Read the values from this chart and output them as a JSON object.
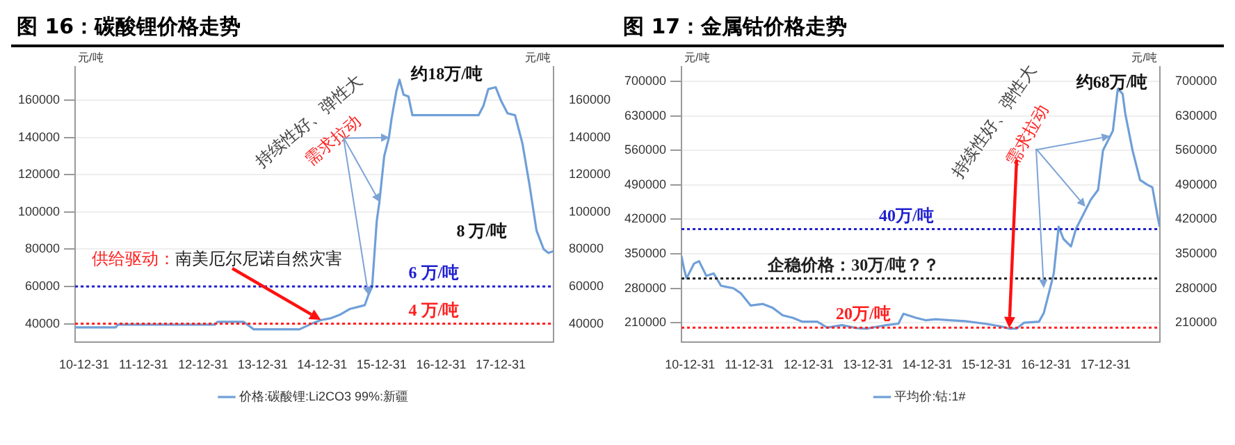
{
  "chart_data": [
    {
      "type": "line",
      "title": "图 16：碳酸锂价格走势",
      "ylabel": "元/吨",
      "y2label": "元/吨",
      "x": [
        "2010-11-06",
        "2011-07-12",
        "2011-07-27",
        "2013-03-13",
        "2013-03-29",
        "2013-09-06",
        "2013-11-06",
        "2014-08-14",
        "2014-10-27",
        "2014-12-25",
        "2015-02-24",
        "2015-04-23",
        "2015-06-21",
        "2015-09-19",
        "2015-10-09",
        "2015-11-03",
        "2015-12-01",
        "2015-12-17",
        "2016-01-16",
        "2016-02-14",
        "2016-03-01",
        "2016-03-31",
        "2016-04-19",
        "2016-05-14",
        "2016-06-13",
        "2016-07-07",
        "2017-08-17",
        "2017-09-16",
        "2017-10-16",
        "2017-11-30",
        "2018-01-01",
        "2018-02-11",
        "2018-03-29",
        "2018-05-13",
        "2018-06-25",
        "2018-08-08",
        "2018-09-21",
        "2018-10-20",
        "2018-11-20"
      ],
      "series": [
        {
          "name": "价格:碳酸锂:Li2CO3 99%:新疆",
          "color": "#6f9fd8",
          "values": [
            38000,
            38000,
            39500,
            39500,
            41000,
            41000,
            37000,
            37000,
            40000,
            42000,
            43000,
            45000,
            48000,
            50000,
            55000,
            60000,
            95000,
            105000,
            130000,
            140000,
            150000,
            165000,
            171000,
            163000,
            162000,
            152000,
            152000,
            157000,
            166000,
            167000,
            160000,
            153000,
            152000,
            137000,
            115000,
            90000,
            80000,
            78000,
            79000
          ]
        }
      ],
      "xlim": [
        "2010-11-06",
        "2018-11-20"
      ],
      "xticks": [
        {
          "value": "2010-12-31",
          "label": "10-12-31"
        },
        {
          "value": "2011-12-31",
          "label": "11-12-31"
        },
        {
          "value": "2012-12-31",
          "label": "12-12-31"
        },
        {
          "value": "2013-12-31",
          "label": "13-12-31"
        },
        {
          "value": "2014-12-31",
          "label": "14-12-31"
        },
        {
          "value": "2015-12-31",
          "label": "15-12-31"
        },
        {
          "value": "2016-12-31",
          "label": "16-12-31"
        },
        {
          "value": "2017-12-31",
          "label": "17-12-31"
        }
      ],
      "ylim": [
        30000,
        178000
      ],
      "yticks": [
        40000,
        60000,
        80000,
        100000,
        120000,
        140000,
        160000
      ],
      "y2lim": [
        30000,
        178000
      ],
      "y2ticks": [
        40000,
        60000,
        80000,
        100000,
        120000,
        140000,
        160000
      ],
      "ref_lines": [
        {
          "axis": "y",
          "value": 60000,
          "label": "6 万/吨",
          "color": "#1f1fd0",
          "line_style": "dotted"
        },
        {
          "axis": "y",
          "value": 40000,
          "label": "4 万/吨",
          "color": "#ff2020",
          "line_style": "dotted"
        }
      ],
      "annotations": [
        "约18万/吨",
        "8 万/吨",
        {
          "text": "持续性好、弹性大",
          "x": "2016-02-14",
          "y": 140000
        },
        {
          "text": "需求拉动",
          "x": "2015-12-17",
          "y": 105000
        },
        "供给驱动：",
        {
          "text": "南美厄尔尼诺自然灾害",
          "x": "2014-12-25",
          "y": 42000
        }
      ],
      "grid": "y",
      "legend": "bottom"
    },
    {
      "type": "line",
      "title": "图 17：金属钴价格走势",
      "ylabel": "元/吨",
      "y2label": "元/吨",
      "x": [
        "2010-11-09",
        "2010-11-24",
        "2010-12-10",
        "2011-01-25",
        "2011-02-25",
        "2011-04-11",
        "2011-05-26",
        "2011-07-10",
        "2011-09-24",
        "2011-11-08",
        "2012-01-08",
        "2012-03-24",
        "2012-05-24",
        "2012-07-24",
        "2012-09-23",
        "2012-11-22",
        "2013-02-22",
        "2013-04-23",
        "2013-07-23",
        "2013-10-22",
        "2013-12-21",
        "2014-04-22",
        "2014-07-06",
        "2014-08-06",
        "2014-10-21",
        "2014-12-20",
        "2015-02-19",
        "2015-05-21",
        "2015-08-20",
        "2015-12-19",
        "2016-03-19",
        "2016-05-19",
        "2016-07-03",
        "2016-08-18",
        "2016-11-17",
        "2016-12-17",
        "2017-01-17",
        "2017-02-16",
        "2017-03-18",
        "2017-04-17",
        "2017-06-02",
        "2017-07-02",
        "2017-08-17",
        "2017-10-02",
        "2017-11-16",
        "2017-12-16",
        "2018-01-31",
        "2018-02-15",
        "2018-03-17",
        "2018-04-16",
        "2018-05-02",
        "2018-06-16",
        "2018-08-01",
        "2018-09-16",
        "2018-10-16",
        "2018-11-15",
        "2018-11-30"
      ],
      "series": [
        {
          "name": "平均价:钴:1#",
          "color": "#6f9fd8",
          "values": [
            345000,
            320000,
            300000,
            330000,
            335000,
            305000,
            310000,
            285000,
            280000,
            270000,
            245000,
            248000,
            240000,
            225000,
            220000,
            212000,
            212000,
            200000,
            205000,
            199000,
            198000,
            205000,
            208000,
            228000,
            220000,
            215000,
            217000,
            215000,
            213000,
            208000,
            203000,
            198000,
            198000,
            210000,
            212000,
            230000,
            270000,
            310000,
            405000,
            380000,
            365000,
            400000,
            430000,
            460000,
            480000,
            560000,
            590000,
            600000,
            685000,
            675000,
            635000,
            560000,
            500000,
            490000,
            485000,
            430000,
            405000
          ]
        }
      ],
      "xlim": [
        "2010-11-09",
        "2018-12-01"
      ],
      "xticks": [
        {
          "value": "2010-12-31",
          "label": "10-12-31"
        },
        {
          "value": "2011-12-31",
          "label": "11-12-31"
        },
        {
          "value": "2012-12-31",
          "label": "12-12-31"
        },
        {
          "value": "2013-12-31",
          "label": "13-12-31"
        },
        {
          "value": "2014-12-31",
          "label": "14-12-31"
        },
        {
          "value": "2015-12-31",
          "label": "15-12-31"
        },
        {
          "value": "2016-12-31",
          "label": "16-12-31"
        },
        {
          "value": "2017-12-31",
          "label": "17-12-31"
        }
      ],
      "ylim": [
        170000,
        730000
      ],
      "yticks": [
        210000,
        280000,
        350000,
        420000,
        490000,
        560000,
        630000,
        700000
      ],
      "y2lim": [
        170000,
        730000
      ],
      "y2ticks": [
        210000,
        280000,
        350000,
        420000,
        490000,
        560000,
        630000,
        700000
      ],
      "ref_lines": [
        {
          "axis": "y",
          "value": 400000,
          "label": "40万/吨",
          "color": "#1f1fd0",
          "line_style": "dotted"
        },
        {
          "axis": "y",
          "value": 300000,
          "label": "企稳价格：30万/吨？？",
          "color": "#202020",
          "line_style": "dotted"
        },
        {
          "axis": "y",
          "value": 200000,
          "label": "20万/吨",
          "color": "#ff2020",
          "line_style": "dotted"
        }
      ],
      "annotations": [
        "约68万/吨",
        {
          "text": "持续性好、弹性大",
          "x": "2018-01-31",
          "y": 590000
        },
        {
          "text": "需求拉动",
          "x": "2016-05-19",
          "y": 198000
        }
      ],
      "grid": "y",
      "legend": "bottom"
    }
  ]
}
